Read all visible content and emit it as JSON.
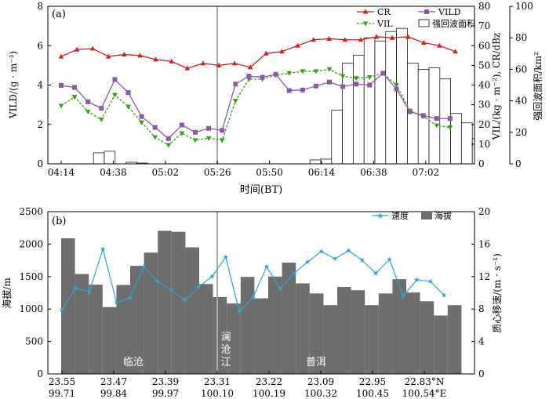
{
  "chart_data": [
    {
      "type": "bar+line",
      "panel_label": "(a)",
      "xlabel": "时间(BT)",
      "x_tick_labels": [
        "04:14",
        "04:38",
        "05:02",
        "05:26",
        "05:50",
        "06:14",
        "06:38",
        "07:02"
      ],
      "y_left": {
        "label": "VILD/(g · m⁻³)",
        "lim": [
          0,
          8
        ],
        "ticks": [
          "0",
          "2",
          "4",
          "6",
          "8"
        ]
      },
      "y_right1": {
        "label": "VIL/(kg · m⁻²), CR/dBz",
        "lim": [
          0,
          80
        ],
        "ticks": [
          "0",
          "10",
          "20",
          "30",
          "40",
          "50",
          "60",
          "70",
          "80"
        ]
      },
      "y_right2": {
        "label": "强回波面积/km²",
        "lim": [
          0,
          100
        ],
        "ticks": [
          "0",
          "20",
          "40",
          "60",
          "80",
          "100"
        ]
      },
      "divider_after_x": "05:26",
      "legend": [
        "CR",
        "VILD",
        "VIL",
        "强回波面积"
      ],
      "colors": {
        "CR": "#d42020",
        "VILD": "#8a5aa8",
        "VIL": "#3a9a22",
        "area": "#ffffff",
        "divider": "#a8a8a8"
      },
      "series": {
        "CR": [
          54.5,
          58.0,
          58.5,
          54.5,
          55.5,
          55.0,
          53.0,
          52.0,
          48.5,
          51.0,
          50.0,
          51.0,
          49.0,
          56.0,
          57.0,
          60.0,
          63.0,
          63.5,
          63.0,
          63.0,
          64.5,
          64.0,
          64.5,
          61.5,
          60.0,
          57.0
        ],
        "VILD": [
          3.98,
          3.88,
          3.15,
          2.82,
          4.28,
          3.62,
          2.4,
          1.85,
          1.28,
          1.97,
          1.6,
          1.8,
          1.7,
          4.05,
          4.45,
          4.4,
          4.55,
          3.72,
          3.75,
          3.95,
          4.15,
          3.92,
          4.05,
          4.0,
          4.6,
          3.8,
          2.65,
          2.45,
          2.3,
          2.3
        ],
        "VIL": [
          29.5,
          34.0,
          26.5,
          22.5,
          35.0,
          29.0,
          21.0,
          13.5,
          9.5,
          15.5,
          12.0,
          13.0,
          12.0,
          32.0,
          43.0,
          43.0,
          45.0,
          46.0,
          47.0,
          47.0,
          48.0,
          44.5,
          43.5,
          44.0,
          46.0,
          40.0,
          27.0,
          24.0,
          19.5,
          18.5
        ],
        "area": [
          0,
          0,
          0,
          0,
          7,
          8,
          0,
          1,
          0.5,
          0,
          0,
          0,
          0,
          0,
          0,
          0,
          0,
          0,
          0,
          0,
          0,
          0,
          0,
          0,
          2.5,
          3,
          34,
          64,
          69,
          80,
          78,
          84,
          86,
          64,
          60,
          61,
          54,
          32,
          26,
          16,
          2
        ]
      }
    },
    {
      "type": "bar+line",
      "panel_label": "(b)",
      "y_left": {
        "label": "海拔/m",
        "lim": [
          0,
          2500
        ],
        "ticks": [
          "0",
          "500",
          "1000",
          "1500",
          "2000",
          "2500"
        ]
      },
      "y_right": {
        "label": "质心移速/(m · s⁻¹)",
        "lim": [
          0,
          20
        ],
        "ticks": [
          "0",
          "4",
          "8",
          "12",
          "16",
          "20"
        ]
      },
      "x_tick_lat": [
        "23.55",
        "23.47",
        "23.39",
        "23.31",
        "23.22",
        "23.09",
        "22.95",
        "22.83°N"
      ],
      "x_tick_lon": [
        "99.71",
        "99.84",
        "99.97",
        "100.10",
        "100.19",
        "100.32",
        "100.45",
        "100.54°E"
      ],
      "legend": [
        "速度",
        "海拔"
      ],
      "region_labels": [
        "临沧",
        "澜",
        "沧",
        "江",
        "普洱"
      ],
      "colors": {
        "speed": "#2aa8d8",
        "elevation": "#6e6e6e",
        "divider": "#a8a8a8",
        "region_text": "#ffffff"
      },
      "series": {
        "elevation": [
          2090,
          1540,
          1375,
          1030,
          1370,
          1665,
          1870,
          2205,
          2190,
          1950,
          1385,
          1185,
          1085,
          1495,
          1165,
          1500,
          1715,
          1395,
          1240,
          1060,
          1340,
          1290,
          1060,
          1240,
          1460,
          1255,
          1120,
          900,
          1060
        ],
        "speed": [
          7.9,
          10.6,
          10.1,
          15.4,
          8.8,
          9.4,
          13.2,
          11.4,
          10.4,
          9.1,
          10.7,
          12.0,
          14.4,
          7.7,
          9.4,
          13.2,
          10.5,
          12.4,
          13.8,
          15.1,
          14.2,
          15.2,
          14.0,
          12.4,
          14.1,
          9.6,
          11.6,
          11.4,
          9.7
        ]
      }
    }
  ]
}
